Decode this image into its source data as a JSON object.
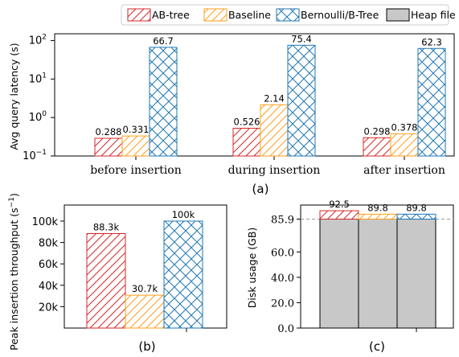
{
  "legend": {
    "items": [
      {
        "label": "AB-tree",
        "color": "#d62728",
        "hatch": "diag-right"
      },
      {
        "label": "Baseline",
        "color": "#ff9f1c",
        "hatch": "diag-right"
      },
      {
        "label": "Bernoulli/B-Tree",
        "color": "#1f77b4",
        "hatch": "cross"
      },
      {
        "label": "Heap file",
        "color": "#c8c8c8",
        "hatch": "none"
      }
    ]
  },
  "chart_data": [
    {
      "type": "bar",
      "caption": "(a)",
      "ylabel": "Avg query latency (s)",
      "yscale": "log",
      "ylim": [
        0.1,
        150
      ],
      "yticks": [
        {
          "value": 0.1,
          "base": "10",
          "exp": "−1"
        },
        {
          "value": 1,
          "base": "10",
          "exp": "0"
        },
        {
          "value": 10,
          "base": "10",
          "exp": "1"
        },
        {
          "value": 100,
          "base": "10",
          "exp": "2"
        }
      ],
      "categories": [
        "before insertion",
        "during insertion",
        "after insertion"
      ],
      "series": [
        {
          "name": "AB-tree",
          "values": [
            0.288,
            0.526,
            0.298
          ],
          "labels": [
            "0.288",
            "0.526",
            "0.298"
          ]
        },
        {
          "name": "Baseline",
          "values": [
            0.331,
            2.14,
            0.378
          ],
          "labels": [
            "0.331",
            "2.14",
            "0.378"
          ]
        },
        {
          "name": "Bernoulli/B-Tree",
          "values": [
            66.7,
            75.4,
            62.3
          ],
          "labels": [
            "66.7",
            "75.4",
            "62.3"
          ]
        }
      ]
    },
    {
      "type": "bar",
      "caption": "(b)",
      "ylabel": "Peak insertion throughput (s",
      "ylabel_sup": "−1",
      "ylabel_close": ")",
      "ylim": [
        0,
        115000
      ],
      "yticks": [
        {
          "value": 20000,
          "label": "20k"
        },
        {
          "value": 40000,
          "label": "40k"
        },
        {
          "value": 60000,
          "label": "60k"
        },
        {
          "value": 80000,
          "label": "80k"
        },
        {
          "value": 100000,
          "label": "100k"
        }
      ],
      "series": [
        {
          "name": "AB-tree",
          "value": 88300,
          "label": "88.3k"
        },
        {
          "name": "Baseline",
          "value": 30700,
          "label": "30.7k"
        },
        {
          "name": "Bernoulli/B-Tree",
          "value": 100000,
          "label": "100k"
        }
      ]
    },
    {
      "type": "bar",
      "caption": "(c)",
      "ylabel": "Disk usage (GB)",
      "ylim": [
        0,
        97
      ],
      "yticks": [
        {
          "value": 0,
          "label": "0.0"
        },
        {
          "value": 20,
          "label": "20.0"
        },
        {
          "value": 40,
          "label": "40.0"
        },
        {
          "value": 60,
          "label": "60.0"
        },
        {
          "value": 85.9,
          "label": "85.9"
        }
      ],
      "reference_line": {
        "value": 85.9,
        "style": "dashed",
        "color": "#999999"
      },
      "bars": [
        {
          "name": "AB-tree",
          "total": 92.5,
          "label": "92.5",
          "heap": 85.9
        },
        {
          "name": "Baseline",
          "total": 89.8,
          "label": "89.8",
          "heap": 85.9
        },
        {
          "name": "Bernoulli/B-Tree",
          "total": 89.8,
          "label": "89.8",
          "heap": 85.9
        }
      ]
    }
  ]
}
